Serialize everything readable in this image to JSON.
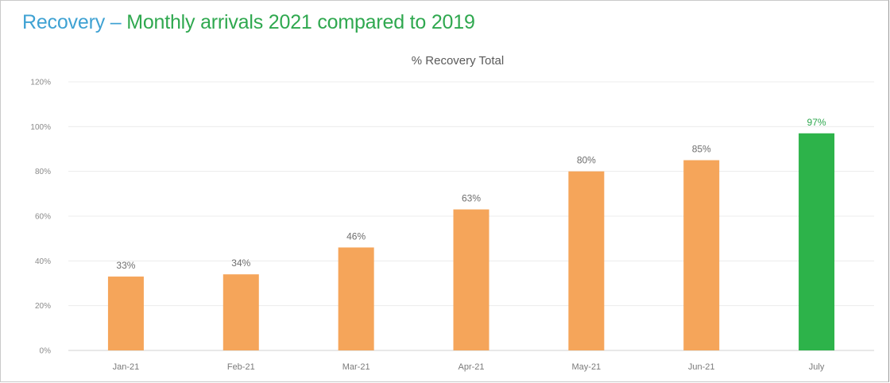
{
  "page": {
    "headline_part1": "Recovery – ",
    "headline_part2": "Monthly arrivals 2021 compared to 2019",
    "headline_colors": {
      "part1": "#3fa2d3",
      "part2": "#2fa84f"
    }
  },
  "chart_data": {
    "type": "bar",
    "title": "% Recovery Total",
    "xlabel": "",
    "ylabel": "",
    "categories": [
      "Jan-21",
      "Feb-21",
      "Mar-21",
      "Apr-21",
      "May-21",
      "Jun-21",
      "July"
    ],
    "values": [
      33,
      34,
      46,
      63,
      80,
      85,
      97
    ],
    "data_labels": [
      "33%",
      "34%",
      "46%",
      "63%",
      "80%",
      "85%",
      "97%"
    ],
    "ylim": [
      0,
      120
    ],
    "yticks": [
      "0%",
      "20%",
      "40%",
      "60%",
      "80%",
      "100%",
      "120%"
    ],
    "ytick_values": [
      0,
      20,
      40,
      60,
      80,
      100,
      120
    ],
    "bar_colors": [
      "#f5a55a",
      "#f5a55a",
      "#f5a55a",
      "#f5a55a",
      "#f5a55a",
      "#f5a55a",
      "#2db34a"
    ],
    "highlight_label_color": "#2fa84f",
    "grid": true,
    "legend": "none"
  }
}
